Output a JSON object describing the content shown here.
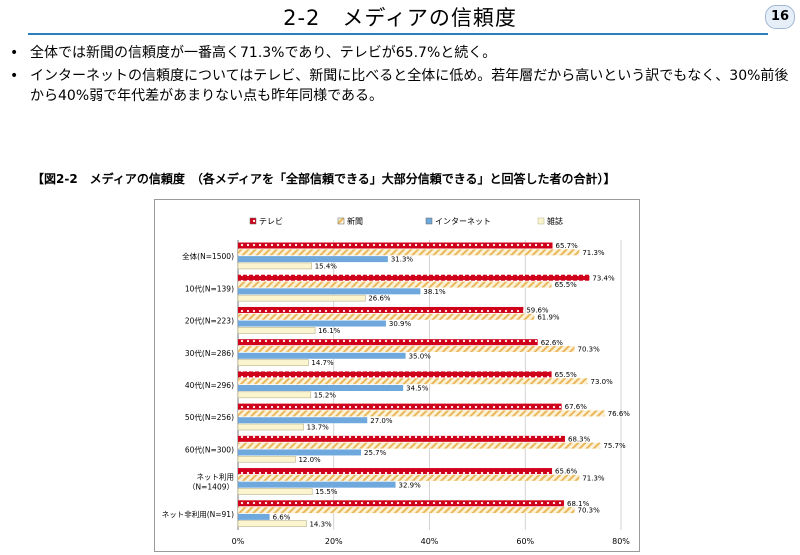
{
  "header": {
    "title": "2-2　メディアの信頼度",
    "page_number": "16"
  },
  "bullets": [
    "全体では新聞の信頼度が一番高く71.3%であり、テレビが65.7%と続く。",
    "インターネットの信頼度についてはテレビ、新聞に比べると全体に低め。若年層だから高いという訳でもなく、30%前後から40%弱で年代差があまりない点も昨年同様である。"
  ],
  "chart_caption": "【図2-2　メディアの信頼度　（各メディアを「全部信頼できる」大部分信頼できる」と回答した者の合計）】",
  "chart_data": {
    "type": "bar",
    "orientation": "horizontal",
    "categories": [
      [
        "全体(N=1500)"
      ],
      [
        "10代(N=139)"
      ],
      [
        "20代(N=223)"
      ],
      [
        "30代(N=286)"
      ],
      [
        "40代(N=296)"
      ],
      [
        "50代(N=256)"
      ],
      [
        "60代(N=300)"
      ],
      [
        "ネット利用",
        "（N=1409）"
      ],
      [
        "ネット非利用(N=91)"
      ]
    ],
    "series": [
      {
        "name": "テレビ",
        "color": "#d0021b",
        "pattern": "dots",
        "values": [
          65.7,
          73.4,
          59.6,
          62.6,
          65.5,
          67.6,
          68.3,
          65.6,
          68.1
        ]
      },
      {
        "name": "新聞",
        "color": "#f1c97a",
        "pattern": "diagonal",
        "values": [
          71.3,
          65.5,
          61.9,
          70.3,
          73.0,
          76.6,
          75.7,
          71.3,
          70.3
        ]
      },
      {
        "name": "インターネット",
        "color": "#6fa8dc",
        "pattern": "solid",
        "values": [
          31.3,
          38.1,
          30.9,
          35.0,
          34.5,
          27.0,
          25.7,
          32.9,
          6.6
        ]
      },
      {
        "name": "雑誌",
        "color": "#fbf5cf",
        "pattern": "solid",
        "values": [
          15.4,
          26.6,
          16.1,
          14.7,
          15.2,
          13.7,
          12.0,
          15.5,
          14.3
        ]
      }
    ],
    "value_suffix": "%",
    "xlim": [
      0,
      80
    ],
    "xticks": [
      "0%",
      "20%",
      "40%",
      "60%",
      "80%"
    ],
    "legend_position": "top",
    "grid": true
  }
}
